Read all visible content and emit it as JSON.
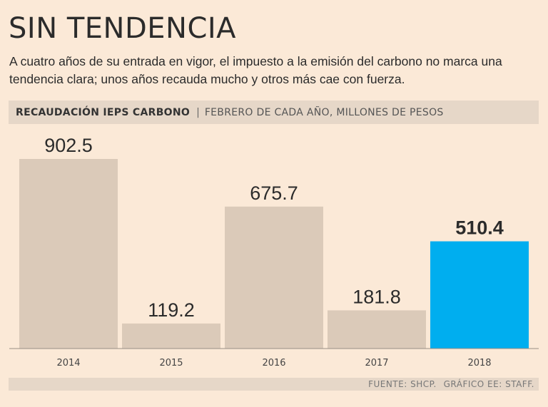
{
  "header": {
    "title": "SIN TENDENCIA",
    "subtitle": "A cuatro años de su entrada en vigor, el impuesto a la emisión del carbono no marca una tendencia clara; unos años recauda mucho y otros más cae con fuerza."
  },
  "band": {
    "main": "RECAUDACIÓN IEPS CARBONO",
    "separator": "|",
    "sub": "FEBRERO DE CADA AÑO, MILLONES DE PESOS"
  },
  "footer": {
    "source": "FUENTE: SHCP.",
    "credit": "GRÁFICO EE: STAFF."
  },
  "colors": {
    "bar": "#dbcab9",
    "highlight": "#00aeef"
  },
  "chart_data": {
    "type": "bar",
    "categories": [
      "2014",
      "2015",
      "2016",
      "2017",
      "2018"
    ],
    "values": [
      902.5,
      119.2,
      675.7,
      181.8,
      510.4
    ],
    "value_labels": [
      "902.5",
      "119.2",
      "675.7",
      "181.8",
      "510.4"
    ],
    "highlight_index": 4,
    "ylim": [
      0,
      902.5
    ],
    "grid": false,
    "legend": "none"
  }
}
